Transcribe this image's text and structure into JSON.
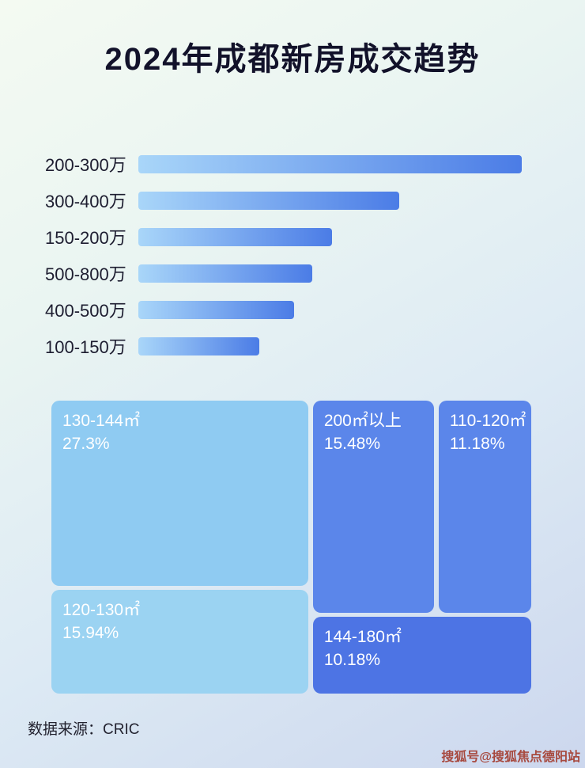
{
  "page": {
    "title": "2024年成都新房成交趋势",
    "source": "数据来源：CRIC",
    "watermark": "搜狐号@搜狐焦点德阳站"
  },
  "chart_data": [
    {
      "type": "bar",
      "orientation": "horizontal",
      "title": "2024年成都新房成交趋势",
      "categories": [
        "200-300万",
        "300-400万",
        "150-200万",
        "500-800万",
        "400-500万",
        "100-150万"
      ],
      "values": [
        100,
        68,
        50.5,
        45.4,
        40.6,
        31.5
      ],
      "values_note": "relative bar lengths as percent of longest bar; no numeric axis shown",
      "xlabel": "",
      "ylabel": "",
      "grid": false,
      "legend": false,
      "bar_gradient": [
        "#a9d6f9",
        "#4b7ce6"
      ]
    },
    {
      "type": "treemap",
      "items": [
        {
          "label": "130-144㎡",
          "value": "27.3%",
          "color": "#8fcbf2"
        },
        {
          "label": "120-130㎡",
          "value": "15.94%",
          "color": "#9bd3f2"
        },
        {
          "label": "200㎡以上",
          "value": "15.48%",
          "color": "#5b86ea"
        },
        {
          "label": "110-120㎡",
          "value": "11.18%",
          "color": "#5b86ea"
        },
        {
          "label": "144-180㎡",
          "value": "10.18%",
          "color": "#4d74e4"
        }
      ]
    }
  ]
}
